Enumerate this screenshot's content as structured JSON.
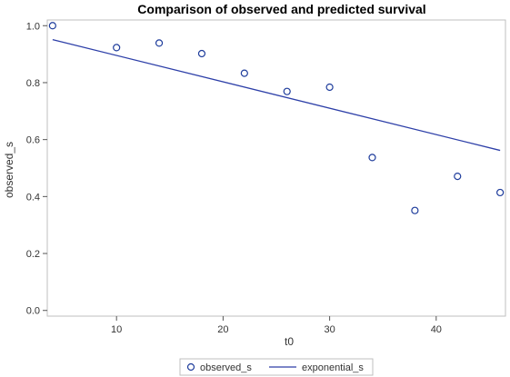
{
  "chart_data": {
    "type": "scatter",
    "title": "Comparison of observed and predicted survival",
    "xlabel": "t0",
    "ylabel": "observed_s",
    "xlim": [
      3.5,
      46.5
    ],
    "ylim": [
      -0.02,
      1.02
    ],
    "xticks": [
      10,
      20,
      30,
      40
    ],
    "yticks": [
      0.0,
      0.2,
      0.4,
      0.6,
      0.8,
      1.0
    ],
    "xtick_labels": [
      "10",
      "20",
      "30",
      "40"
    ],
    "ytick_labels": [
      "0.0",
      "0.2",
      "0.4",
      "0.6",
      "0.8",
      "1.0"
    ],
    "grid": false,
    "legend_position": "bottom",
    "series": [
      {
        "name": "observed_s",
        "type": "scatter",
        "marker": "circle-open",
        "color": "#1f3d9c",
        "x": [
          4,
          10,
          14,
          18,
          22,
          26,
          30,
          34,
          38,
          42,
          46
        ],
        "y": [
          1.0,
          0.923,
          0.939,
          0.902,
          0.833,
          0.769,
          0.784,
          0.537,
          0.351,
          0.471,
          0.414
        ]
      },
      {
        "name": "exponential_s",
        "type": "line",
        "color": "#2d3fa8",
        "x": [
          4,
          46
        ],
        "y": [
          0.951,
          0.562
        ]
      }
    ]
  }
}
